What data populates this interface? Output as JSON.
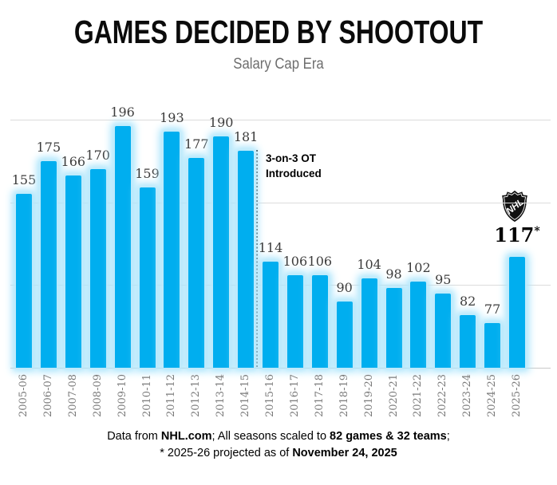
{
  "title": "GAMES DECIDED BY SHOOTOUT",
  "subtitle": "Salary Cap Era",
  "chart_data": {
    "type": "bar",
    "categories": [
      "2005-06",
      "2006-07",
      "2007-08",
      "2008-09",
      "2009-10",
      "2010-11",
      "2011-12",
      "2012-13",
      "2013-14",
      "2014-15",
      "2015-16",
      "2016-17",
      "2017-18",
      "2018-19",
      "2019-20",
      "2020-21",
      "2021-22",
      "2022-23",
      "2023-24",
      "2024-25",
      "2025-26"
    ],
    "values": [
      155,
      175,
      166,
      170,
      196,
      159,
      193,
      177,
      190,
      181,
      114,
      106,
      106,
      90,
      104,
      98,
      102,
      95,
      82,
      77,
      117
    ],
    "ylim": [
      50,
      205
    ],
    "gridlines": [
      100,
      150,
      200
    ],
    "legend": "none",
    "yaxis_labels": "none",
    "bar_color": "#00aeef",
    "glow_color": "#a9e4fb",
    "annotation": {
      "line1": "3-on-3 OT",
      "line2": "Introduced"
    },
    "projected": {
      "index": 20,
      "season": "2025-26",
      "value": 117,
      "marker": "*",
      "logo": "nhl-shield"
    }
  },
  "footer": {
    "line1": [
      {
        "t": "Data from "
      },
      {
        "t": "NHL.com",
        "b": true
      },
      {
        "t": "; All seasons scaled to "
      },
      {
        "t": "82 games & 32 teams",
        "b": true
      },
      {
        "t": ";"
      }
    ],
    "line2": [
      {
        "t": "* 2025-26 projected as of "
      },
      {
        "t": "November 24, 2025",
        "b": true
      }
    ]
  }
}
